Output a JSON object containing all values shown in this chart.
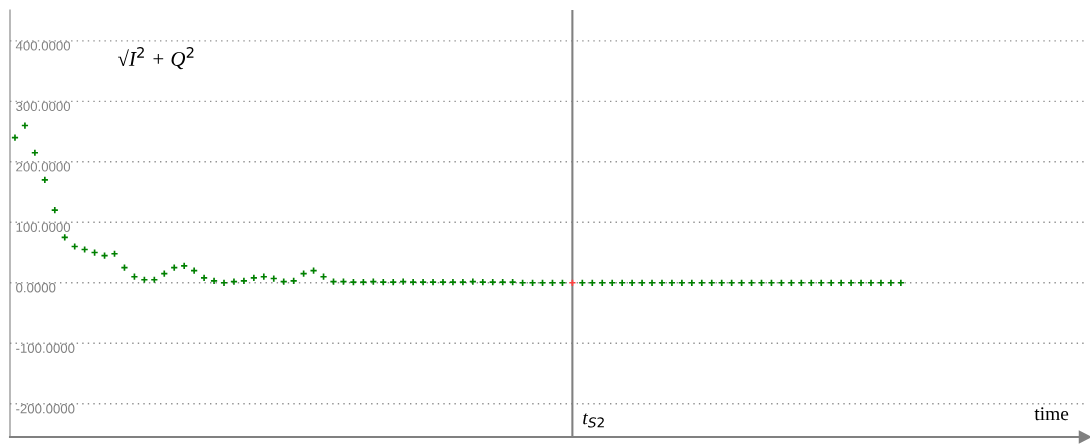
{
  "chart_data": {
    "type": "scatter",
    "categories": [
      null,
      null,
      null,
      null,
      null,
      null,
      null,
      null,
      null,
      null,
      null,
      null,
      null,
      null,
      null,
      null,
      null,
      null,
      null,
      null,
      null,
      null,
      null,
      null,
      null,
      null,
      null,
      null,
      null,
      null,
      null,
      null,
      null,
      null,
      null,
      null,
      null,
      null,
      null,
      null,
      null,
      null,
      null,
      null,
      null,
      null,
      null,
      null,
      null,
      null,
      null,
      null,
      null,
      null,
      null,
      null,
      null,
      null,
      null,
      null,
      null,
      null,
      null,
      null,
      null,
      null,
      null,
      null,
      null,
      null,
      null,
      null,
      null,
      null,
      null,
      null,
      null,
      null,
      null,
      null,
      null,
      null,
      null,
      null,
      null,
      null,
      null,
      null,
      null,
      null,
      null,
      null,
      null,
      null,
      null,
      null,
      null,
      null,
      null,
      null,
      null,
      null,
      null,
      null,
      null,
      null,
      null,
      null
    ],
    "series": [
      {
        "color": "#008000",
        "values": [
          240,
          260,
          215,
          170,
          120,
          75,
          60,
          55,
          50,
          45,
          48,
          25,
          10,
          5,
          5,
          15,
          25,
          28,
          20,
          8,
          3,
          0,
          2,
          3,
          8,
          10,
          7,
          2,
          3,
          15,
          20,
          10,
          2,
          2,
          1,
          1,
          2,
          1,
          1,
          2,
          1,
          1,
          1,
          1,
          1,
          1,
          2,
          1,
          1,
          1,
          1,
          0,
          0,
          0,
          0,
          0,
          0,
          0,
          0,
          0,
          0,
          0,
          0,
          0,
          0,
          0,
          0,
          0,
          0,
          0,
          0,
          0,
          0,
          0,
          0,
          0,
          0,
          0,
          0,
          0,
          0,
          0,
          0,
          0,
          0,
          0,
          0,
          0,
          0,
          0,
          null,
          null,
          null,
          null,
          null,
          null,
          null,
          null,
          null,
          null,
          null,
          null,
          null,
          null,
          null,
          null,
          null,
          null
        ],
        "colors": [
          "#008000",
          "#008000",
          "#008000",
          "#008000",
          "#008000",
          "#008000",
          "#008000",
          "#008000",
          "#008000",
          "#008000",
          "#008000",
          "#008000",
          "#008000",
          "#008000",
          "#008000",
          "#008000",
          "#008000",
          "#008000",
          "#008000",
          "#008000",
          "#008000",
          "#008000",
          "#008000",
          "#008000",
          "#008000",
          "#008000",
          "#008000",
          "#008000",
          "#008000",
          "#008000",
          "#008000",
          "#008000",
          "#008000",
          "#008000",
          "#008000",
          "#008000",
          "#008000",
          "#008000",
          "#008000",
          "#008000",
          "#008000",
          "#008000",
          "#008000",
          "#008000",
          "#008000",
          "#008000",
          "#008000",
          "#008000",
          "#008000",
          "#008000",
          "#008000",
          "#008000",
          "#008000",
          "#008000",
          "#008000",
          "#008000",
          "#ff4040",
          "#008000",
          "#008000",
          "#008000",
          "#008000",
          "#008000",
          "#008000",
          "#008000",
          "#008000",
          "#008000",
          "#008000",
          "#008000",
          "#008000",
          "#008000",
          "#008000",
          "#008000",
          "#008000",
          "#008000",
          "#008000",
          "#008000",
          "#008000",
          "#008000",
          "#008000",
          "#008000",
          "#008000",
          "#008000",
          "#008000",
          "#008000",
          "#008000",
          "#008000",
          "#008000",
          "#008000",
          "#008000",
          "#008000",
          null,
          null,
          null,
          null,
          null,
          null,
          null,
          null,
          null,
          null,
          null,
          null,
          null,
          null,
          null,
          null,
          null,
          null
        ]
      }
    ],
    "ylim": [
      -255,
      451
    ],
    "yticks": [
      {
        "value": 400,
        "label": "400.0000"
      },
      {
        "value": 300,
        "label": "300.0000"
      },
      {
        "value": 200,
        "label": "200.0000"
      },
      {
        "value": 100,
        "label": "100.0000"
      },
      {
        "value": 0,
        "label": "0.0000"
      },
      {
        "value": -100,
        "label": "-100.0000"
      },
      {
        "value": -200,
        "label": "-200.0000"
      }
    ],
    "xlabel": "time",
    "annotations": [
      "√I$^{2}$ + Q$^{2}$",
      "t$_{S2}$"
    ],
    "grid": "y",
    "marker": "cross",
    "tick_labels": "y",
    "legend": false
  }
}
